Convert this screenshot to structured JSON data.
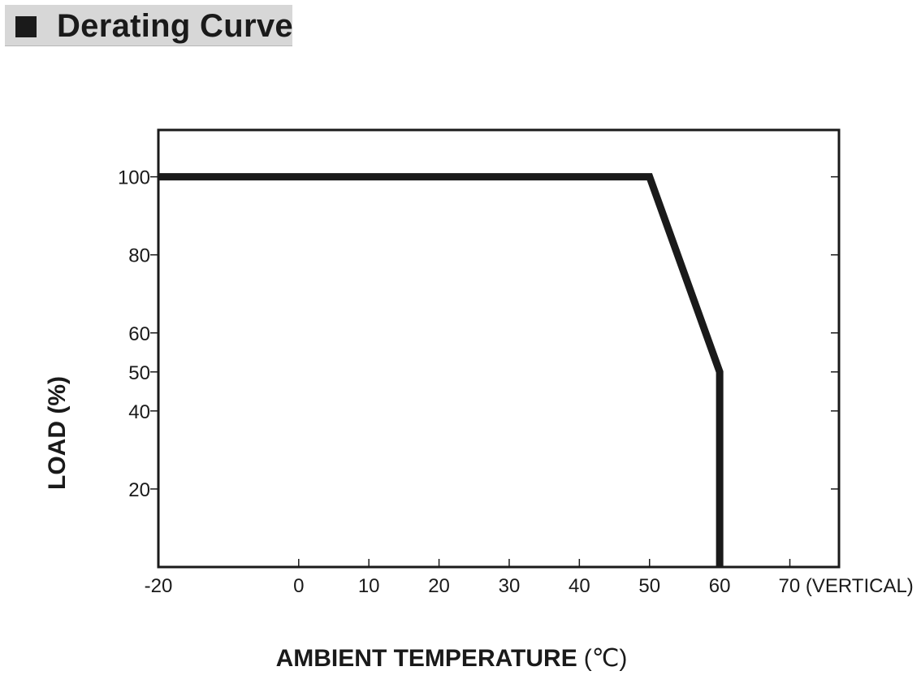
{
  "header": {
    "title": "Derating Curve"
  },
  "chart_data": {
    "type": "line",
    "title": "Derating Curve",
    "xlabel": "AMBIENT TEMPERATURE",
    "xlabel_unit": "(℃)",
    "ylabel": "LOAD (%)",
    "x_ticks": [
      {
        "value": -20,
        "label": "-20"
      },
      {
        "value": 0,
        "label": "0"
      },
      {
        "value": 10,
        "label": "10"
      },
      {
        "value": 20,
        "label": "20"
      },
      {
        "value": 30,
        "label": "30"
      },
      {
        "value": 40,
        "label": "40"
      },
      {
        "value": 50,
        "label": "50"
      },
      {
        "value": 60,
        "label": "60"
      },
      {
        "value": 70,
        "label": "70 (VERTICAL)"
      }
    ],
    "y_ticks": [
      {
        "value": 20,
        "label": "20"
      },
      {
        "value": 40,
        "label": "40"
      },
      {
        "value": 50,
        "label": "50"
      },
      {
        "value": 60,
        "label": "60"
      },
      {
        "value": 80,
        "label": "80"
      },
      {
        "value": 100,
        "label": "100"
      }
    ],
    "xlim": [
      -20,
      77
    ],
    "ylim": [
      0,
      112
    ],
    "grid": false,
    "series": [
      {
        "x": [
          -20,
          50,
          60,
          60
        ],
        "y": [
          100,
          100,
          50,
          0
        ],
        "color": "#1a1a1a"
      }
    ]
  }
}
